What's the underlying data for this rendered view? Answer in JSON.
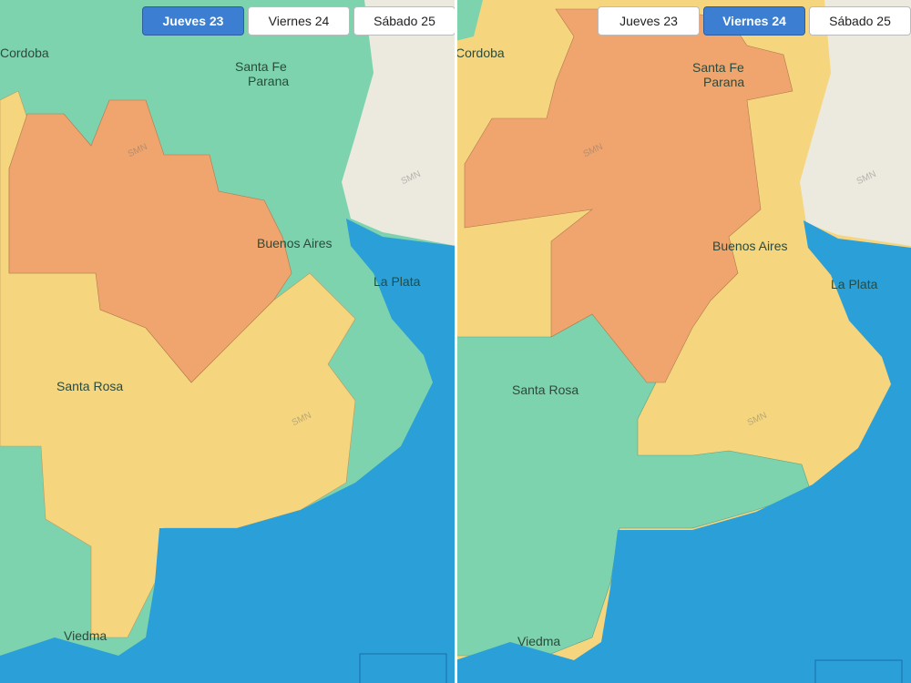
{
  "tabs": [
    {
      "label": "Jueves 23"
    },
    {
      "label": "Viernes 24"
    },
    {
      "label": "Sábado 25"
    }
  ],
  "panels": [
    {
      "active_tab": "Jueves 23",
      "cities": [
        "Cordoba",
        "Santa Fe",
        "Parana",
        "Buenos Aires",
        "La Plata",
        "Santa Rosa",
        "Viedma"
      ]
    },
    {
      "active_tab": "Viernes 24",
      "cities": [
        "Cordoba",
        "Santa Fe",
        "Parana",
        "Buenos Aires",
        "La Plata",
        "Santa Rosa",
        "Viedma"
      ]
    }
  ],
  "watermark": "SMN",
  "colors": {
    "green": "#7dd3ae",
    "yellow": "#f5d67e",
    "orange": "#f0a56e",
    "sea": "#2a9fd8",
    "land": "#ece9df",
    "active_tab": "#3c7fd2"
  }
}
